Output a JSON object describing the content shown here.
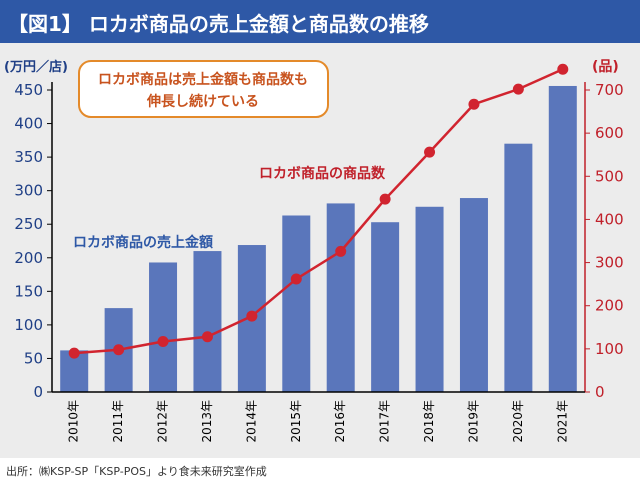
{
  "title": "【図1】 ロカボ商品の売上金額と商品数の推移",
  "source": "出所：㈱KSP-SP「KSP-POS」より食未来研究室作成",
  "chart_data": {
    "type": "bar+line",
    "categories": [
      "2010年",
      "2011年",
      "2012年",
      "2013年",
      "2014年",
      "2015年",
      "2016年",
      "2017年",
      "2018年",
      "2019年",
      "2020年",
      "2021年"
    ],
    "left_axis": {
      "unit": "(万円／店)",
      "ylim": [
        0,
        450
      ],
      "ticks": [
        0,
        50,
        100,
        150,
        200,
        250,
        300,
        350,
        400,
        450
      ]
    },
    "right_axis": {
      "unit": "(品)",
      "ylim": [
        0,
        700
      ],
      "ticks": [
        0,
        100,
        200,
        300,
        400,
        500,
        600,
        700
      ]
    },
    "series": [
      {
        "name": "ロカボ商品の売上金額",
        "type": "bar",
        "axis": "left",
        "color": "#5a76bb",
        "values": [
          62,
          125,
          193,
          210,
          219,
          263,
          281,
          253,
          276,
          289,
          370,
          456
        ]
      },
      {
        "name": "ロカボ商品の商品数",
        "type": "line",
        "axis": "right",
        "color": "#d1242f",
        "values": [
          90,
          98,
          117,
          128,
          176,
          262,
          326,
          447,
          556,
          667,
          702,
          748
        ]
      }
    ],
    "callout": "ロカボ商品は売上金額も商品数も\n伸長し続けている",
    "grid": false,
    "colors": {
      "left_axis": "#1f3f86",
      "right_axis": "#c0202a",
      "callout_border": "#e48a2a"
    }
  }
}
